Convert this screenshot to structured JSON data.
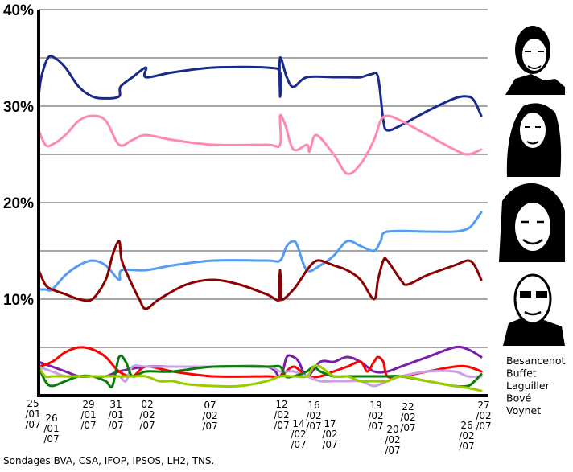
{
  "chart_data": {
    "type": "line",
    "title": "",
    "xlabel": "",
    "ylabel": "",
    "ylim": [
      0,
      40
    ],
    "yticks": [
      {
        "value": 10,
        "label": "10%"
      },
      {
        "value": 20,
        "label": "20%"
      },
      {
        "value": 30,
        "label": "30%"
      },
      {
        "value": 40,
        "label": "40%"
      }
    ],
    "grid": true,
    "legend_placement": "right",
    "source": "Sondages BVA, CSA, IFOP, IPSOS, LH2, TNS.",
    "x_dates": [
      {
        "day": 25,
        "lines": [
          "25",
          "/01",
          "/07"
        ]
      },
      {
        "day": 26,
        "lines": [
          "26",
          "/01",
          "/07"
        ]
      },
      {
        "day": 29,
        "lines": [
          "29",
          "/01",
          "/07"
        ]
      },
      {
        "day": 31,
        "lines": [
          "31",
          "/01",
          "/07"
        ]
      },
      {
        "day": 33,
        "lines": [
          "02",
          "/02",
          "/07"
        ]
      },
      {
        "day": 38,
        "lines": [
          "07",
          "/02",
          "/07"
        ]
      },
      {
        "day": 43,
        "lines": [
          "12",
          "/02",
          "/07"
        ]
      },
      {
        "day": 45,
        "lines": [
          "14",
          "/02",
          "/07"
        ]
      },
      {
        "day": 47,
        "lines": [
          "16",
          "/02",
          "/07"
        ]
      },
      {
        "day": 48,
        "lines": [
          "17",
          "/02",
          "/07"
        ]
      },
      {
        "day": 50,
        "lines": [
          "19",
          "/02",
          "/07"
        ]
      },
      {
        "day": 51,
        "lines": [
          "20",
          "/02",
          "/07"
        ]
      },
      {
        "day": 53,
        "lines": [
          "22",
          "/02",
          "/07"
        ]
      },
      {
        "day": 57,
        "lines": [
          "26",
          "/02",
          "/07"
        ]
      },
      {
        "day": 58,
        "lines": [
          "27",
          "/02",
          "/07"
        ]
      }
    ],
    "series": [
      {
        "color": "#1a2a8c",
        "points": [
          [
            25,
            31
          ],
          [
            25.2,
            33
          ],
          [
            25.7,
            35
          ],
          [
            26.2,
            35
          ],
          [
            27,
            34
          ],
          [
            28,
            32
          ],
          [
            29,
            31
          ],
          [
            30,
            30.8
          ],
          [
            31,
            31
          ],
          [
            31.1,
            32
          ],
          [
            32,
            33
          ],
          [
            33,
            34
          ],
          [
            33,
            33
          ],
          [
            35,
            33.5
          ],
          [
            38,
            34
          ],
          [
            42,
            34
          ],
          [
            43,
            33.5
          ],
          [
            43,
            31
          ],
          [
            43,
            35
          ],
          [
            43.5,
            33
          ],
          [
            44,
            32
          ],
          [
            45,
            33
          ],
          [
            47,
            33
          ],
          [
            48,
            33
          ],
          [
            49,
            33
          ],
          [
            49.8,
            33.3
          ],
          [
            50.3,
            33
          ],
          [
            50.7,
            28.5
          ],
          [
            51,
            27.5
          ],
          [
            52,
            28
          ],
          [
            54,
            29.5
          ],
          [
            56,
            30.8
          ],
          [
            57,
            31
          ],
          [
            57.5,
            30.5
          ],
          [
            58,
            29
          ]
        ]
      },
      {
        "color": "#ff88b4",
        "points": [
          [
            25,
            27.5
          ],
          [
            25.5,
            26
          ],
          [
            26,
            26
          ],
          [
            27,
            27
          ],
          [
            28,
            28.5
          ],
          [
            29,
            29
          ],
          [
            30,
            28.5
          ],
          [
            31,
            26
          ],
          [
            32,
            26.5
          ],
          [
            33,
            27
          ],
          [
            35,
            26.5
          ],
          [
            38,
            26
          ],
          [
            42,
            26
          ],
          [
            43,
            26
          ],
          [
            43,
            29
          ],
          [
            43.4,
            28
          ],
          [
            44,
            25.5
          ],
          [
            45,
            26
          ],
          [
            45.2,
            25.3
          ],
          [
            45.7,
            27
          ],
          [
            47,
            25
          ],
          [
            48,
            23
          ],
          [
            49,
            24
          ],
          [
            50,
            26.5
          ],
          [
            50.5,
            28.5
          ],
          [
            51,
            29
          ],
          [
            52,
            28.5
          ],
          [
            54,
            27
          ],
          [
            56,
            25.5
          ],
          [
            57,
            25
          ],
          [
            58,
            25.5
          ]
        ]
      },
      {
        "color": "#559cf4",
        "points": [
          [
            25,
            11
          ],
          [
            25.5,
            11
          ],
          [
            26,
            11
          ],
          [
            27,
            12.5
          ],
          [
            28,
            13.5
          ],
          [
            29,
            14
          ],
          [
            30,
            13.5
          ],
          [
            31,
            12
          ],
          [
            31.2,
            13
          ],
          [
            33,
            13
          ],
          [
            35,
            13.5
          ],
          [
            38,
            14
          ],
          [
            42,
            14
          ],
          [
            43,
            14
          ],
          [
            43.5,
            15.5
          ],
          [
            44,
            16
          ],
          [
            44.3,
            15.5
          ],
          [
            45,
            13
          ],
          [
            46,
            13.5
          ],
          [
            47,
            14.5
          ],
          [
            48,
            16
          ],
          [
            49,
            15.5
          ],
          [
            50,
            15
          ],
          [
            50.5,
            16
          ],
          [
            51,
            17
          ],
          [
            54,
            17
          ],
          [
            56,
            17
          ],
          [
            57,
            17.3
          ],
          [
            57.5,
            18
          ],
          [
            58,
            19
          ]
        ]
      },
      {
        "color": "#8b0000",
        "points": [
          [
            25,
            13
          ],
          [
            25.5,
            11.5
          ],
          [
            26,
            11
          ],
          [
            27,
            10.5
          ],
          [
            28,
            10
          ],
          [
            29,
            10
          ],
          [
            30,
            12
          ],
          [
            30.5,
            14.5
          ],
          [
            31,
            16
          ],
          [
            31.2,
            14
          ],
          [
            31.8,
            12
          ],
          [
            32.5,
            10
          ],
          [
            33,
            9
          ],
          [
            34,
            10
          ],
          [
            36,
            11.5
          ],
          [
            38,
            12
          ],
          [
            40,
            11.5
          ],
          [
            42,
            10.5
          ],
          [
            43,
            10
          ],
          [
            43,
            13
          ],
          [
            43,
            10
          ],
          [
            44,
            11
          ],
          [
            45,
            13
          ],
          [
            45.5,
            13.8
          ],
          [
            46,
            14
          ],
          [
            47,
            13.5
          ],
          [
            48,
            13
          ],
          [
            49,
            12
          ],
          [
            50,
            10
          ],
          [
            50.3,
            12
          ],
          [
            50.7,
            14
          ],
          [
            51,
            14
          ],
          [
            52,
            12
          ],
          [
            52.5,
            11.5
          ],
          [
            54,
            12.5
          ],
          [
            56,
            13.5
          ],
          [
            57,
            14
          ],
          [
            57.5,
            13.5
          ],
          [
            58,
            12
          ]
        ]
      },
      {
        "color": "#7a1ea8",
        "points": [
          [
            25,
            3.5
          ],
          [
            26,
            3
          ],
          [
            27,
            2.5
          ],
          [
            28,
            2
          ],
          [
            29,
            2
          ],
          [
            30,
            2
          ],
          [
            31,
            2.5
          ],
          [
            33,
            3
          ],
          [
            35,
            3
          ],
          [
            38,
            3
          ],
          [
            42,
            3
          ],
          [
            43,
            2
          ],
          [
            43.5,
            4
          ],
          [
            44,
            4
          ],
          [
            44.4,
            3.5
          ],
          [
            45,
            2
          ],
          [
            46,
            3.5
          ],
          [
            47,
            3.5
          ],
          [
            48,
            4
          ],
          [
            49,
            3.5
          ],
          [
            50,
            2.5
          ],
          [
            51,
            2.5
          ],
          [
            52,
            3
          ],
          [
            54,
            4
          ],
          [
            56,
            5
          ],
          [
            57,
            4.8
          ],
          [
            58,
            4
          ]
        ]
      },
      {
        "color": "#ff0000",
        "points": [
          [
            25,
            3
          ],
          [
            26,
            3.5
          ],
          [
            27,
            4.5
          ],
          [
            28,
            5
          ],
          [
            29,
            4.8
          ],
          [
            30,
            4
          ],
          [
            31,
            2.5
          ],
          [
            32,
            2
          ],
          [
            33,
            3
          ],
          [
            35,
            2.5
          ],
          [
            38,
            2
          ],
          [
            42,
            2
          ],
          [
            43,
            2
          ],
          [
            44,
            3
          ],
          [
            45,
            2
          ],
          [
            46,
            2
          ],
          [
            47,
            2.5
          ],
          [
            48,
            3
          ],
          [
            49,
            3.5
          ],
          [
            49.5,
            2.5
          ],
          [
            50,
            3.5
          ],
          [
            50.3,
            4
          ],
          [
            50.7,
            3.5
          ],
          [
            51,
            2
          ],
          [
            52,
            2
          ],
          [
            54,
            2.5
          ],
          [
            56,
            3
          ],
          [
            57,
            3
          ],
          [
            58,
            2.5
          ]
        ]
      },
      {
        "color": "#c8a0e8",
        "points": [
          [
            25,
            3
          ],
          [
            26,
            2.5
          ],
          [
            27,
            2
          ],
          [
            28,
            2
          ],
          [
            29,
            2
          ],
          [
            30,
            2
          ],
          [
            31,
            2
          ],
          [
            31.5,
            1.5
          ],
          [
            32,
            3
          ],
          [
            33,
            3
          ],
          [
            35,
            3
          ],
          [
            38,
            3
          ],
          [
            42,
            3
          ],
          [
            43,
            2.5
          ],
          [
            44,
            2.5
          ],
          [
            45,
            2
          ],
          [
            46,
            1.5
          ],
          [
            47,
            1.5
          ],
          [
            48,
            1.5
          ],
          [
            49,
            1.5
          ],
          [
            50,
            1
          ],
          [
            51,
            1.5
          ],
          [
            52,
            2
          ],
          [
            54,
            2.5
          ],
          [
            56,
            2.5
          ],
          [
            57,
            2
          ],
          [
            58,
            2
          ]
        ]
      },
      {
        "color": "#0a7a0a",
        "points": [
          [
            25,
            3
          ],
          [
            25.5,
            1.5
          ],
          [
            26,
            1
          ],
          [
            27,
            1.5
          ],
          [
            28,
            2
          ],
          [
            29,
            2
          ],
          [
            30,
            1.5
          ],
          [
            30.5,
            1
          ],
          [
            31,
            4
          ],
          [
            31.5,
            3.5
          ],
          [
            32,
            2
          ],
          [
            33,
            2.5
          ],
          [
            35,
            2.5
          ],
          [
            38,
            3
          ],
          [
            42,
            3
          ],
          [
            43,
            3
          ],
          [
            43.4,
            2
          ],
          [
            44,
            2
          ],
          [
            45,
            2.5
          ],
          [
            45.5,
            3
          ],
          [
            46,
            2.5
          ],
          [
            47,
            2
          ],
          [
            48,
            2
          ],
          [
            49,
            2
          ],
          [
            50,
            2
          ],
          [
            51,
            2
          ],
          [
            52,
            2
          ],
          [
            54,
            1.5
          ],
          [
            56,
            1
          ],
          [
            57,
            1
          ],
          [
            57.5,
            1.5
          ],
          [
            58,
            2.2
          ]
        ]
      },
      {
        "color": "#99cc00",
        "points": [
          [
            25,
            3
          ],
          [
            25.5,
            2
          ],
          [
            26,
            2
          ],
          [
            27,
            2
          ],
          [
            28,
            2
          ],
          [
            29,
            2
          ],
          [
            30,
            2
          ],
          [
            31,
            2
          ],
          [
            32,
            2
          ],
          [
            33,
            2
          ],
          [
            34,
            1.5
          ],
          [
            35,
            1.5
          ],
          [
            36,
            1.2
          ],
          [
            38,
            1
          ],
          [
            40,
            1
          ],
          [
            42,
            1.5
          ],
          [
            43,
            2
          ],
          [
            44,
            2
          ],
          [
            45,
            2
          ],
          [
            45.5,
            3
          ],
          [
            46,
            3
          ],
          [
            47,
            2
          ],
          [
            48,
            2
          ],
          [
            49,
            1.5
          ],
          [
            50,
            1.5
          ],
          [
            51,
            1.5
          ],
          [
            52,
            2
          ],
          [
            54,
            1.5
          ],
          [
            56,
            1
          ],
          [
            57,
            0.8
          ],
          [
            58,
            0.5
          ]
        ]
      }
    ],
    "legend": [
      "Besancenot",
      "Buffet",
      "Laguiller",
      "Bové",
      "Voynet"
    ]
  }
}
